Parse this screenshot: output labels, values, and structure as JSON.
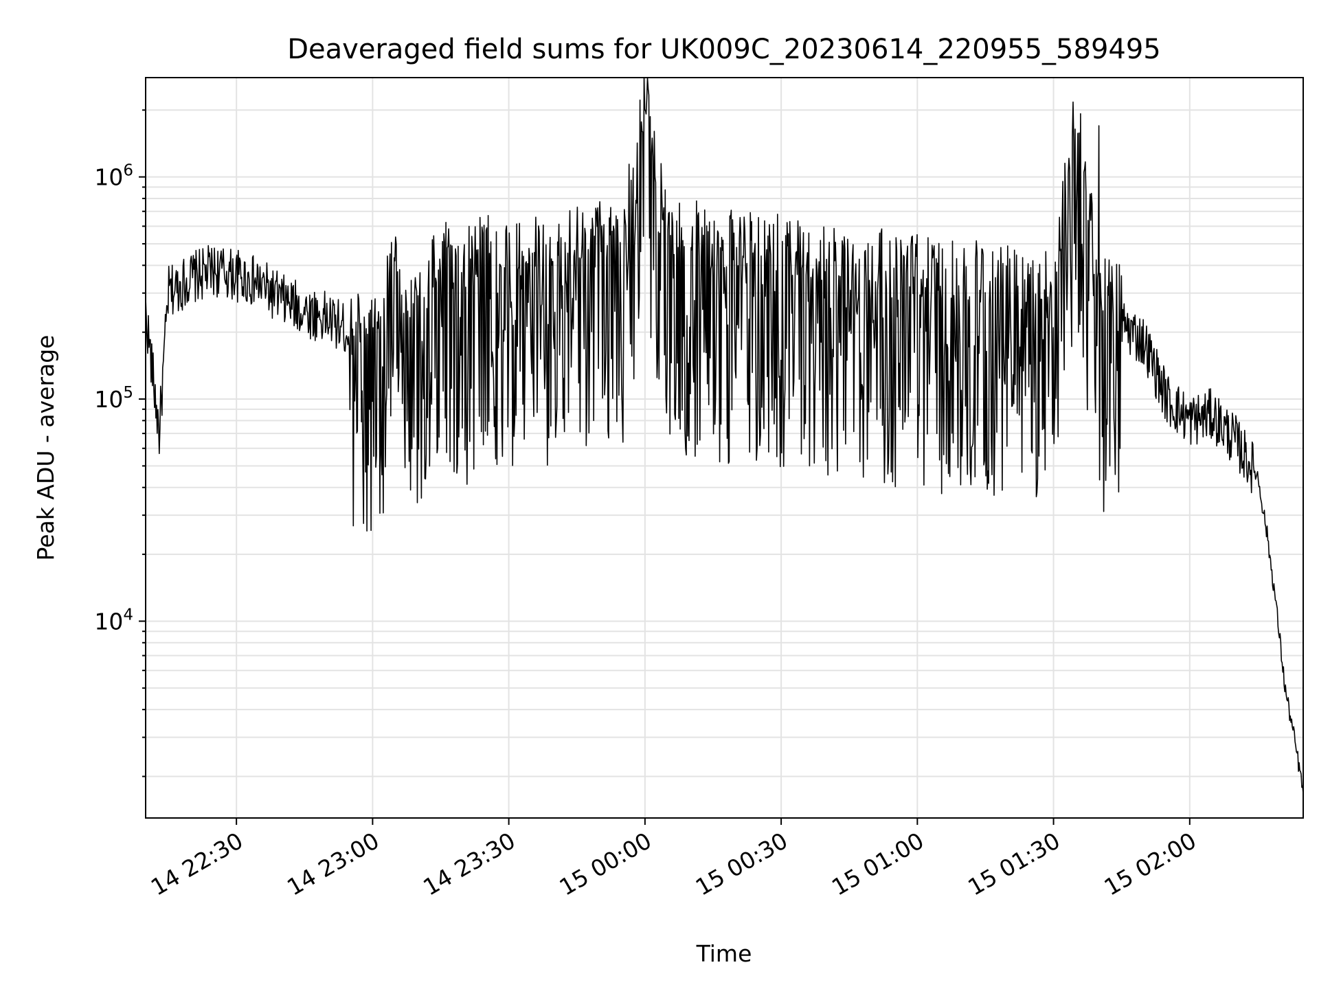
{
  "chart_data": {
    "type": "line",
    "title": "Deaveraged field sums for UK009C_20230614_220955_589495",
    "xlabel": "Time",
    "ylabel": "Peak ADU - average",
    "yscale": "log",
    "ylim": [
      1300,
      2800000
    ],
    "xlim": [
      "14 22:10",
      "15 02:25"
    ],
    "grid": true,
    "x_ticks": [
      "14 22:30",
      "14 23:00",
      "14 23:30",
      "15 00:00",
      "15 00:30",
      "15 01:00",
      "15 01:30",
      "15 02:00"
    ],
    "y_ticks": [
      {
        "value": 10000,
        "base": "10",
        "exp": "4"
      },
      {
        "value": 100000,
        "base": "10",
        "exp": "5"
      },
      {
        "value": 1000000,
        "base": "10",
        "exp": "6"
      }
    ],
    "series": [
      {
        "color": "#000000",
        "x": [
          "14 22:10",
          "14 22:13",
          "14 22:15",
          "14 22:20",
          "14 22:25",
          "14 22:30",
          "14 22:35",
          "14 22:40",
          "14 22:45",
          "14 22:50",
          "14 22:55",
          "14 23:00",
          "14 23:05",
          "14 23:10",
          "14 23:15",
          "14 23:20",
          "14 23:25",
          "14 23:30",
          "14 23:35",
          "14 23:40",
          "14 23:45",
          "14 23:50",
          "14 23:55",
          "15 00:00",
          "15 00:05",
          "15 00:10",
          "15 00:15",
          "15 00:20",
          "15 00:25",
          "15 00:30",
          "15 00:35",
          "15 00:40",
          "15 00:45",
          "15 00:50",
          "15 00:55",
          "15 01:00",
          "15 01:05",
          "15 01:10",
          "15 01:15",
          "15 01:20",
          "15 01:25",
          "15 01:30",
          "15 01:35",
          "15 01:40",
          "15 01:45",
          "15 01:50",
          "15 01:55",
          "15 02:00",
          "15 02:05",
          "15 02:10",
          "15 02:15",
          "15 02:17",
          "15 02:19",
          "15 02:21",
          "15 02:23",
          "15 02:25"
        ],
        "y": [
          250000,
          70000,
          300000,
          350000,
          380000,
          360000,
          330000,
          280000,
          250000,
          230000,
          200000,
          160000,
          300000,
          250000,
          350000,
          300000,
          380000,
          350000,
          350000,
          380000,
          400000,
          420000,
          400000,
          2000000,
          400000,
          420000,
          400000,
          380000,
          370000,
          360000,
          350000,
          330000,
          320000,
          320000,
          300000,
          300000,
          280000,
          280000,
          270000,
          260000,
          250000,
          250000,
          1700000,
          240000,
          220000,
          180000,
          100000,
          80000,
          85000,
          65000,
          45000,
          25000,
          12000,
          5000,
          3000,
          1700
        ]
      }
    ]
  }
}
